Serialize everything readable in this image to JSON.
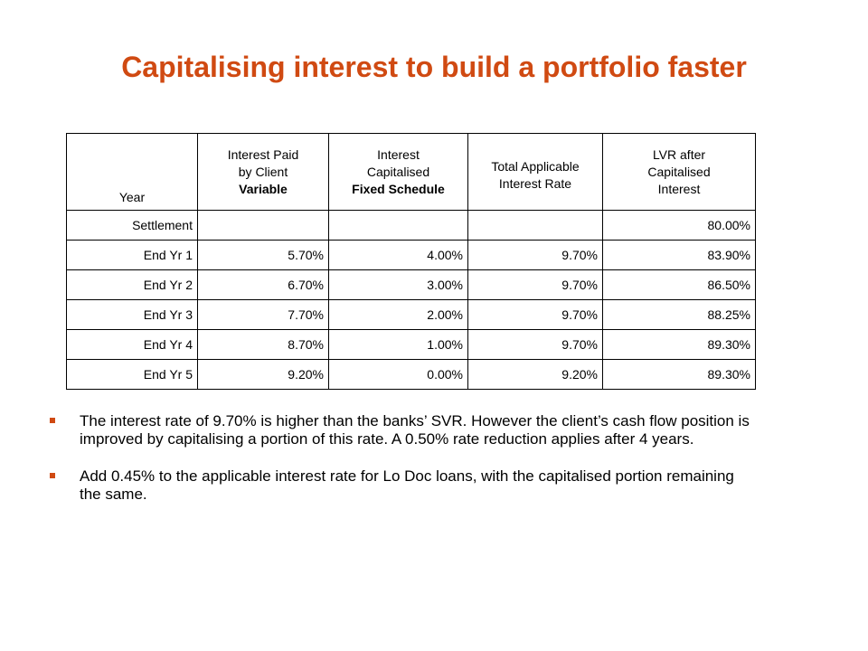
{
  "title": "Capitalising interest to build a portfolio faster",
  "accent_color": "#d04a12",
  "table": {
    "headers": {
      "year": "Year",
      "paid_line1": "Interest Paid",
      "paid_line2": "by Client",
      "paid_line3": "Variable",
      "cap_line1": "Interest",
      "cap_line2": "Capitalised",
      "cap_line3": "Fixed Schedule",
      "total_line1": "Total Applicable",
      "total_line2": "Interest Rate",
      "lvr_line1": "LVR after",
      "lvr_line2": "Capitalised",
      "lvr_line3": "Interest"
    },
    "rows": [
      {
        "year": "Settlement",
        "paid": "",
        "cap": "",
        "total": "",
        "lvr": "80.00%"
      },
      {
        "year": "End Yr 1",
        "paid": "5.70%",
        "cap": "4.00%",
        "total": "9.70%",
        "lvr": "83.90%"
      },
      {
        "year": "End Yr 2",
        "paid": "6.70%",
        "cap": "3.00%",
        "total": "9.70%",
        "lvr": "86.50%"
      },
      {
        "year": "End Yr 3",
        "paid": "7.70%",
        "cap": "2.00%",
        "total": "9.70%",
        "lvr": "88.25%"
      },
      {
        "year": "End Yr 4",
        "paid": "8.70%",
        "cap": "1.00%",
        "total": "9.70%",
        "lvr": "89.30%"
      },
      {
        "year": "End Yr 5",
        "paid": "9.20%",
        "cap": "0.00%",
        "total": "9.20%",
        "lvr": "89.30%"
      }
    ]
  },
  "bullets": [
    "The interest rate of 9.70% is higher than the banks’ SVR. However the client’s cash flow position is improved by capitalising a portion of this rate. A 0.50% rate reduction applies after 4 years.",
    "Add 0.45% to the applicable interest rate for Lo Doc loans, with the capitalised portion remaining the same."
  ],
  "bullet_icon": "square-bullet-icon"
}
